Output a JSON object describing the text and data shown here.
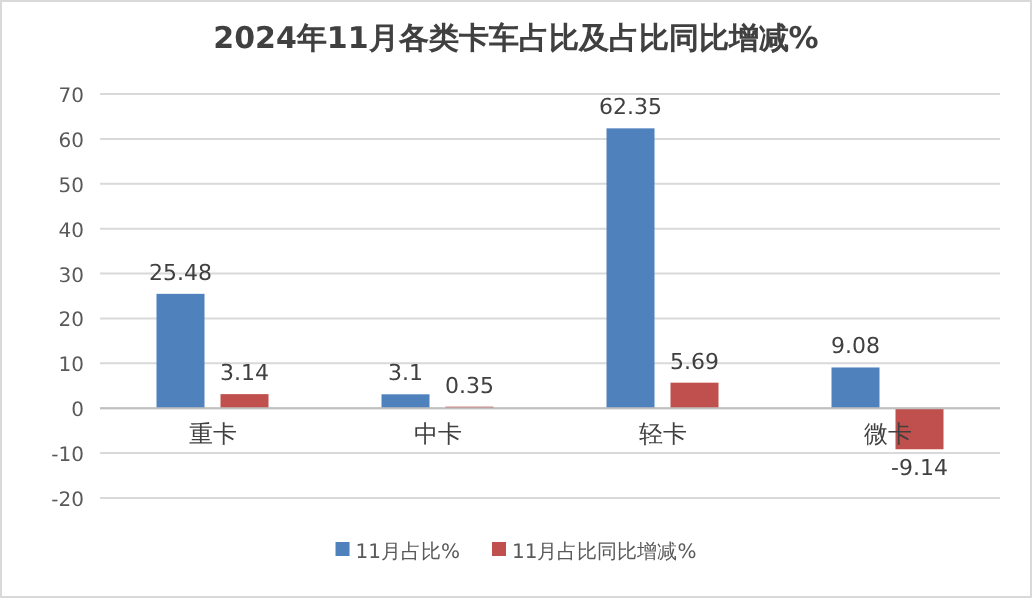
{
  "chart_data": {
    "type": "bar",
    "title": "2024年11月各类卡车占比及占比同比增减%",
    "categories": [
      "重卡",
      "中卡",
      "轻卡",
      "微卡"
    ],
    "series": [
      {
        "name": "11月占比%",
        "color": "#4f81bd",
        "values": [
          25.48,
          3.1,
          62.35,
          9.08
        ]
      },
      {
        "name": "11月占比同比增减%",
        "color": "#c0504d",
        "values": [
          3.14,
          0.35,
          5.69,
          -9.14
        ]
      }
    ],
    "ylim": [
      -20,
      70
    ],
    "yticks": [
      -20,
      -10,
      0,
      10,
      20,
      30,
      40,
      50,
      60,
      70
    ],
    "grid": "y",
    "legend": "bottom",
    "data_labels": true
  }
}
